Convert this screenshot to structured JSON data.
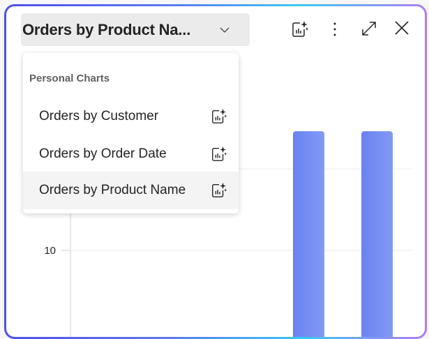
{
  "header": {
    "title": "Orders by Product Na...",
    "dropdown_icon": "chevron-down-icon",
    "actions": [
      {
        "name": "copilot-chart-icon"
      },
      {
        "name": "more-options-icon"
      },
      {
        "name": "expand-icon"
      },
      {
        "name": "close-icon"
      }
    ]
  },
  "menu": {
    "header": "Personal Charts",
    "items": [
      {
        "label": "Orders by Customer",
        "icon": "copilot-chart-icon",
        "selected": false
      },
      {
        "label": "Orders by Order Date",
        "icon": "copilot-chart-icon",
        "selected": false
      },
      {
        "label": "Orders by Product Name",
        "icon": "copilot-chart-icon",
        "selected": true
      }
    ]
  },
  "colors": {
    "bar": "#6a82f0",
    "accent": "#4f4ff0"
  },
  "chart_data": {
    "type": "bar",
    "y_tick_labels": [
      "10"
    ],
    "values": [
      24.6,
      24.6
    ],
    "grid": true
  }
}
